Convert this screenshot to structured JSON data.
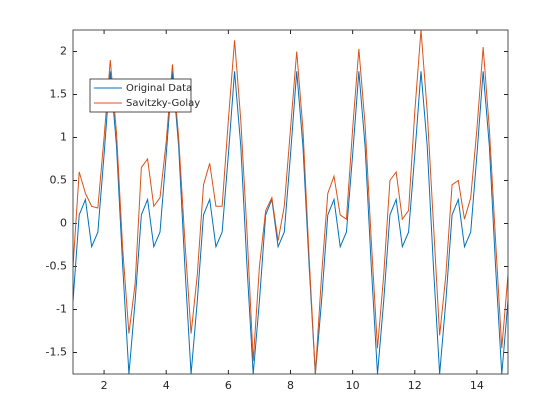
{
  "chart_data": {
    "type": "line",
    "x": [
      1,
      1.2,
      1.4,
      1.6,
      1.8,
      2,
      2.2,
      2.4,
      2.6,
      2.8,
      3,
      3.2,
      3.4,
      3.6,
      3.8,
      4,
      4.2,
      4.4,
      4.6,
      4.8,
      5,
      5.2,
      5.4,
      5.6,
      5.8,
      6,
      6.2,
      6.4,
      6.6,
      6.8,
      7,
      7.2,
      7.4,
      7.6,
      7.8,
      8,
      8.2,
      8.4,
      8.6,
      8.8,
      9,
      9.2,
      9.4,
      9.6,
      9.8,
      10,
      10.2,
      10.4,
      10.6,
      10.8,
      11,
      11.2,
      11.4,
      11.6,
      11.8,
      12,
      12.2,
      12.4,
      12.6,
      12.8,
      13,
      13.2,
      13.4,
      13.6,
      13.8,
      14,
      14.2,
      14.4,
      14.6,
      14.8,
      15
    ],
    "series": [
      {
        "name": "Original Data",
        "color": "#0072bd",
        "values": [
          -0.9,
          0.1,
          0.28,
          -0.27,
          -0.1,
          0.8,
          1.77,
          0.9,
          -0.5,
          -1.75,
          -0.9,
          0.1,
          0.28,
          -0.27,
          -0.1,
          0.8,
          1.77,
          0.9,
          -0.5,
          -1.75,
          -0.9,
          0.1,
          0.28,
          -0.27,
          -0.1,
          0.8,
          1.77,
          0.9,
          -0.5,
          -1.75,
          -0.9,
          0.1,
          0.28,
          -0.27,
          -0.1,
          0.8,
          1.77,
          0.9,
          -0.5,
          -1.75,
          -0.9,
          0.1,
          0.28,
          -0.27,
          -0.1,
          0.8,
          1.77,
          0.9,
          -0.5,
          -1.75,
          -0.9,
          0.1,
          0.28,
          -0.27,
          -0.1,
          0.8,
          1.77,
          0.9,
          -0.5,
          -1.75,
          -0.9,
          0.1,
          0.28,
          -0.27,
          -0.1,
          0.8,
          1.77,
          0.9,
          -0.5,
          -1.75,
          -0.9
        ]
      },
      {
        "name": "Savitzky-Golay",
        "color": "#d95319",
        "values": [
          -0.5,
          0.6,
          0.35,
          0.2,
          0.18,
          1.0,
          1.9,
          1.05,
          -0.3,
          -1.28,
          -0.7,
          0.65,
          0.75,
          0.2,
          0.3,
          0.95,
          1.85,
          1.0,
          -0.2,
          -1.28,
          -0.6,
          0.45,
          0.7,
          0.2,
          0.2,
          1.2,
          2.13,
          1.2,
          -0.1,
          -1.6,
          -0.5,
          0.15,
          0.3,
          -0.2,
          0.2,
          1.1,
          2.0,
          1.1,
          -0.4,
          -1.75,
          -0.6,
          0.35,
          0.55,
          0.1,
          0.05,
          1.1,
          2.03,
          1.15,
          -0.2,
          -1.45,
          -0.6,
          0.5,
          0.6,
          0.05,
          0.15,
          1.3,
          2.25,
          1.3,
          0.0,
          -1.3,
          -0.6,
          0.45,
          0.5,
          0.05,
          0.3,
          1.1,
          2.05,
          1.1,
          -0.2,
          -1.45,
          -0.6
        ]
      }
    ],
    "xlim": [
      1,
      15
    ],
    "xticks": [
      2,
      4,
      6,
      8,
      10,
      12,
      14
    ],
    "ylim": [
      -1.75,
      2.25
    ],
    "yticks": [
      -1.5,
      -1,
      -0.5,
      0,
      0.5,
      1,
      1.5,
      2
    ],
    "grid": false,
    "legend": "upper left"
  }
}
